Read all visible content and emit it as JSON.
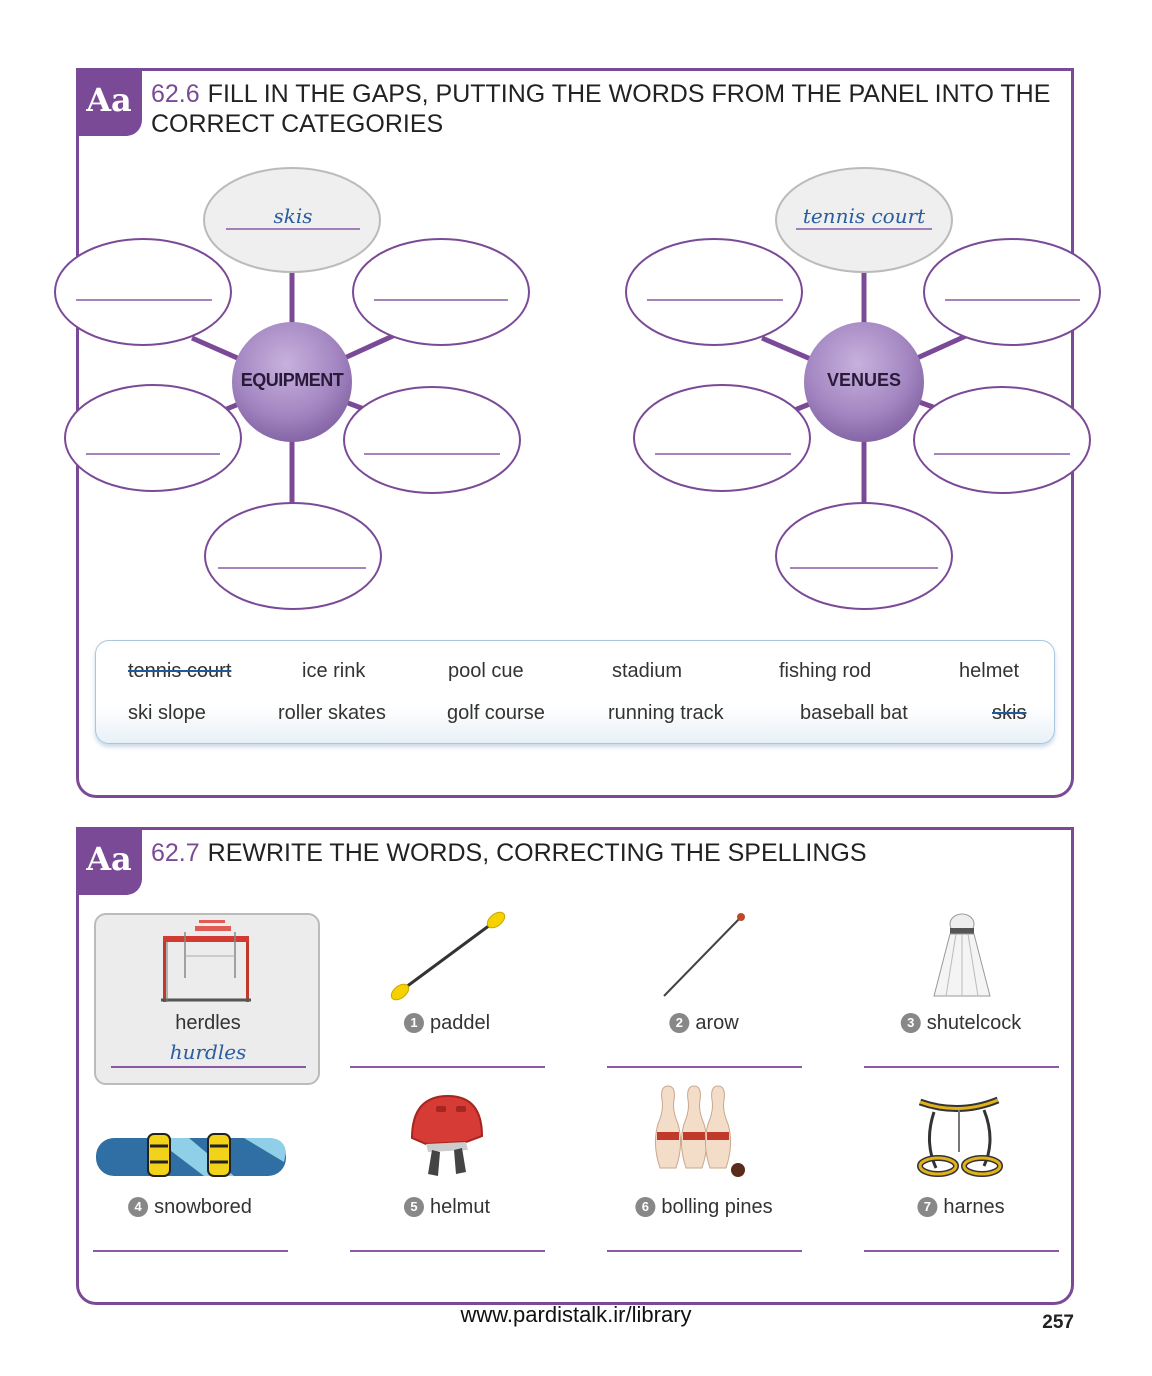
{
  "exercise_1": {
    "badge": "Aa",
    "number": "62.6",
    "title": "FILL IN THE GAPS, PUTTING THE WORDS FROM THE PANEL INTO THE CORRECT CATEGORIES",
    "equipment_hub": "EQUIPMENT",
    "venues_hub": "VENUES",
    "equipment_example": "skis",
    "venues_example": "tennis court",
    "panel_row1": [
      "tennis court",
      "ice rink",
      "pool cue",
      "stadium",
      "fishing rod",
      "helmet"
    ],
    "panel_row2": [
      "ski slope",
      "roller skates",
      "golf course",
      "running track",
      "baseball bat",
      "skis"
    ]
  },
  "exercise_2": {
    "badge": "Aa",
    "number": "62.7",
    "title": "REWRITE THE WORDS, CORRECTING THE SPELLINGS",
    "example_word": "herdles",
    "example_answer": "hurdles",
    "items": [
      {
        "num": "1",
        "word": "paddel",
        "icon": "paddle-icon"
      },
      {
        "num": "2",
        "word": "arow",
        "icon": "arrow-icon"
      },
      {
        "num": "3",
        "word": "shutelcock",
        "icon": "shuttlecock-icon"
      },
      {
        "num": "4",
        "word": "snowbored",
        "icon": "snowboard-icon"
      },
      {
        "num": "5",
        "word": "helmut",
        "icon": "helmet-icon"
      },
      {
        "num": "6",
        "word": "bolling pines",
        "icon": "bowling-pins-icon"
      },
      {
        "num": "7",
        "word": "harnes",
        "icon": "harness-icon"
      }
    ]
  },
  "colors": {
    "accent": "#7b4a97",
    "hub": "#a889c4",
    "ink": "#2a5d9f"
  },
  "footer": {
    "url": "www.pardistalk.ir/library",
    "page": "257"
  }
}
